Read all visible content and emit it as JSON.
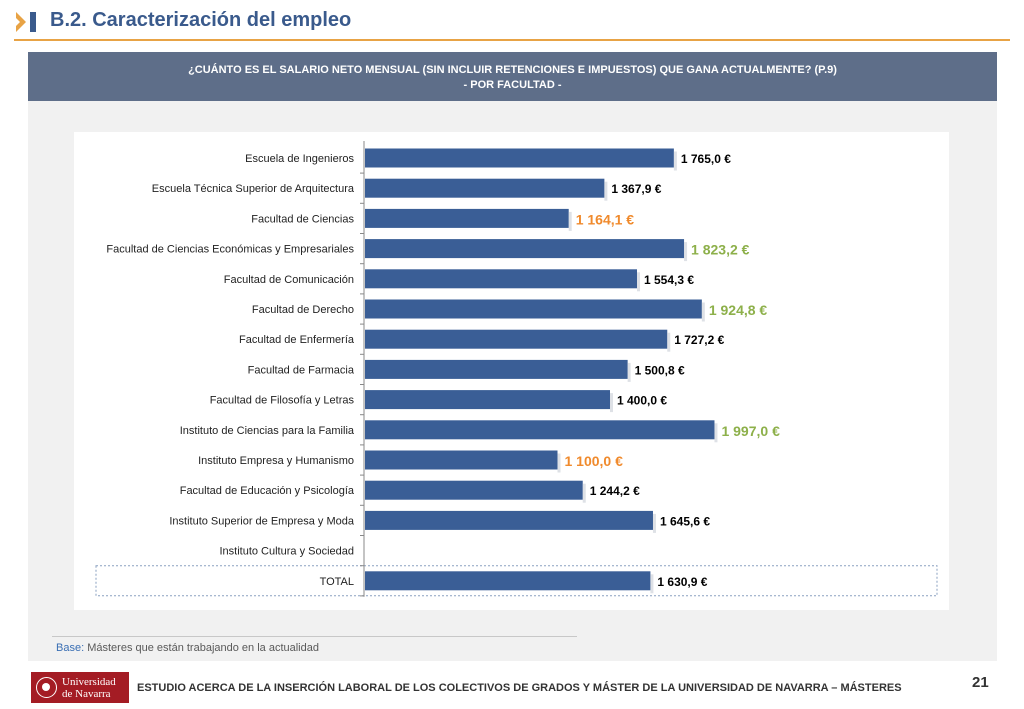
{
  "header": {
    "section_title": "B.2. Caracterización del empleo",
    "accent_color": "#e8a345",
    "title_color": "#3a5a8c"
  },
  "question": {
    "line1": "¿CUÁNTO ES EL SALARIO NETO MENSUAL (SIN INCLUIR RETENCIONES E IMPUESTOS) QUE GANA ACTUALMENTE? (P.9)",
    "line2": "- POR FACULTAD -"
  },
  "chart_data": {
    "type": "bar",
    "orientation": "horizontal",
    "title": "",
    "xlabel": "",
    "ylabel": "",
    "xlim": [
      0,
      2300
    ],
    "grid": false,
    "bar_color": "#3a5e96",
    "highlight_colors": {
      "high": "#8db04a",
      "low": "#f08a2c",
      "normal": "#000000"
    },
    "categories": [
      "Escuela de Ingenieros",
      "Escuela Técnica Superior de Arquitectura",
      "Facultad de Ciencias",
      "Facultad de Ciencias Económicas y Empresariales",
      "Facultad de Comunicación",
      "Facultad de Derecho",
      "Facultad de Enfermería",
      "Facultad de Farmacia",
      "Facultad de Filosofía y Letras",
      "Instituto de Ciencias para la Familia",
      "Instituto Empresa y Humanismo",
      "Facultad de Educación y Psicología",
      "Instituto Superior de Empresa y Moda",
      "Instituto Cultura y Sociedad",
      "TOTAL"
    ],
    "values": [
      1765.0,
      1367.9,
      1164.1,
      1823.2,
      1554.3,
      1924.8,
      1727.2,
      1500.8,
      1400.0,
      1997.0,
      1100.0,
      1244.2,
      1645.6,
      null,
      1630.9
    ],
    "labels": [
      "1 765,0 €",
      "1 367,9 €",
      "1 164,1 €",
      "1 823,2 €",
      "1 554,3 €",
      "1 924,8 €",
      "1 727,2 €",
      "1 500,8 €",
      "1 400,0 €",
      "1 997,0 €",
      "1 100,0 €",
      "1 244,2 €",
      "1 645,6 €",
      "",
      "1 630,9 €"
    ],
    "highlight": [
      "normal",
      "normal",
      "low",
      "high",
      "normal",
      "high",
      "normal",
      "normal",
      "normal",
      "high",
      "low",
      "normal",
      "normal",
      "normal",
      "normal"
    ]
  },
  "base": {
    "label": "Base:",
    "text": "Másteres que están trabajando en la actualidad"
  },
  "footer": {
    "university_line1": "Universidad",
    "university_line2": "de Navarra",
    "study_title": "ESTUDIO ACERCA DE LA INSERCIÓN LABORAL DE LOS COLECTIVOS DE GRADOS Y MÁSTER DE LA UNIVERSIDAD DE NAVARRA – MÁSTERES",
    "page_number": "21"
  }
}
